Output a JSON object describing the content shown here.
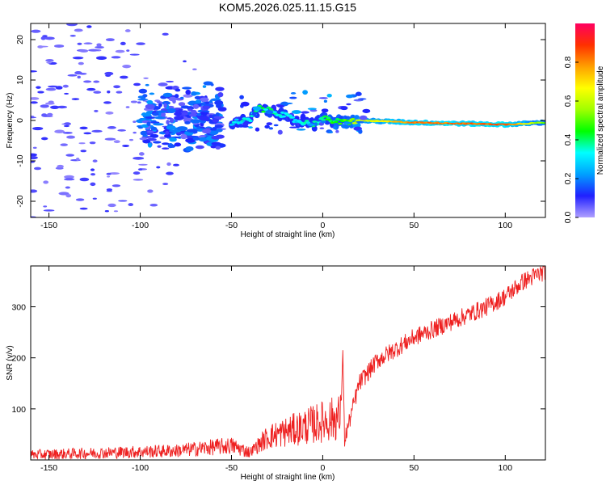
{
  "title": "KOM5.2026.025.11.15.G15",
  "chart_data": [
    {
      "type": "heatmap",
      "name": "spectrogram",
      "xlabel": "Height of straight line (km)",
      "ylabel": "Frequency (Hz)",
      "xlim": [
        -160,
        122
      ],
      "ylim": [
        -24,
        24
      ],
      "xticks": [
        -150,
        -100,
        -50,
        0,
        50,
        100
      ],
      "yticks": [
        -20,
        -10,
        0,
        10,
        20
      ],
      "colorbar": {
        "label": "Normalized spectral amplitude",
        "range": [
          0,
          1
        ],
        "ticks": [
          0.0,
          0.2,
          0.4,
          0.6,
          0.8
        ],
        "stops": [
          "#b0a0ff",
          "#2020ff",
          "#00a0ff",
          "#00ffff",
          "#00ff00",
          "#a0ff00",
          "#ffff00",
          "#ffa000",
          "#ff3000",
          "#ff0060"
        ]
      },
      "features": [
        {
          "label": "scattered weak noise",
          "x_range": [
            -160,
            -100
          ],
          "freq_range": [
            -24,
            24
          ],
          "amplitude": 0.1
        },
        {
          "label": "dense cluster",
          "x_range": [
            -100,
            -55
          ],
          "freq_range": [
            -6,
            9
          ],
          "amplitude": 0.2
        },
        {
          "label": "signal trace",
          "x": [
            -50,
            -40,
            -35,
            -25,
            -15,
            -5,
            0,
            10,
            20,
            50,
            100,
            122
          ],
          "freq": [
            -0.5,
            0,
            3,
            2,
            0,
            -1,
            0.5,
            -0.5,
            0,
            -0.5,
            -1,
            -0.5
          ],
          "amplitude": [
            0.3,
            0.35,
            0.4,
            0.35,
            0.3,
            0.35,
            0.4,
            0.45,
            0.6,
            0.8,
            0.85,
            0.5
          ]
        }
      ]
    },
    {
      "type": "line",
      "name": "snr",
      "xlabel": "Height of straight line (km)",
      "ylabel": "SNR (v/v)",
      "xlim": [
        -160,
        122
      ],
      "ylim": [
        0,
        380
      ],
      "xticks": [
        -150,
        -100,
        -50,
        0,
        50,
        100
      ],
      "yticks": [
        100,
        200,
        300
      ],
      "color": "#ee2020",
      "series": [
        {
          "name": "SNR",
          "x": [
            -160,
            -140,
            -120,
            -100,
            -80,
            -60,
            -50,
            -40,
            -30,
            -20,
            -10,
            0,
            5,
            10,
            11,
            12,
            20,
            30,
            50,
            70,
            90,
            100,
            110,
            122
          ],
          "values": [
            10,
            12,
            14,
            16,
            18,
            25,
            28,
            15,
            45,
            55,
            65,
            75,
            80,
            85,
            215,
            40,
            150,
            195,
            240,
            270,
            300,
            320,
            350,
            370
          ]
        }
      ]
    }
  ]
}
